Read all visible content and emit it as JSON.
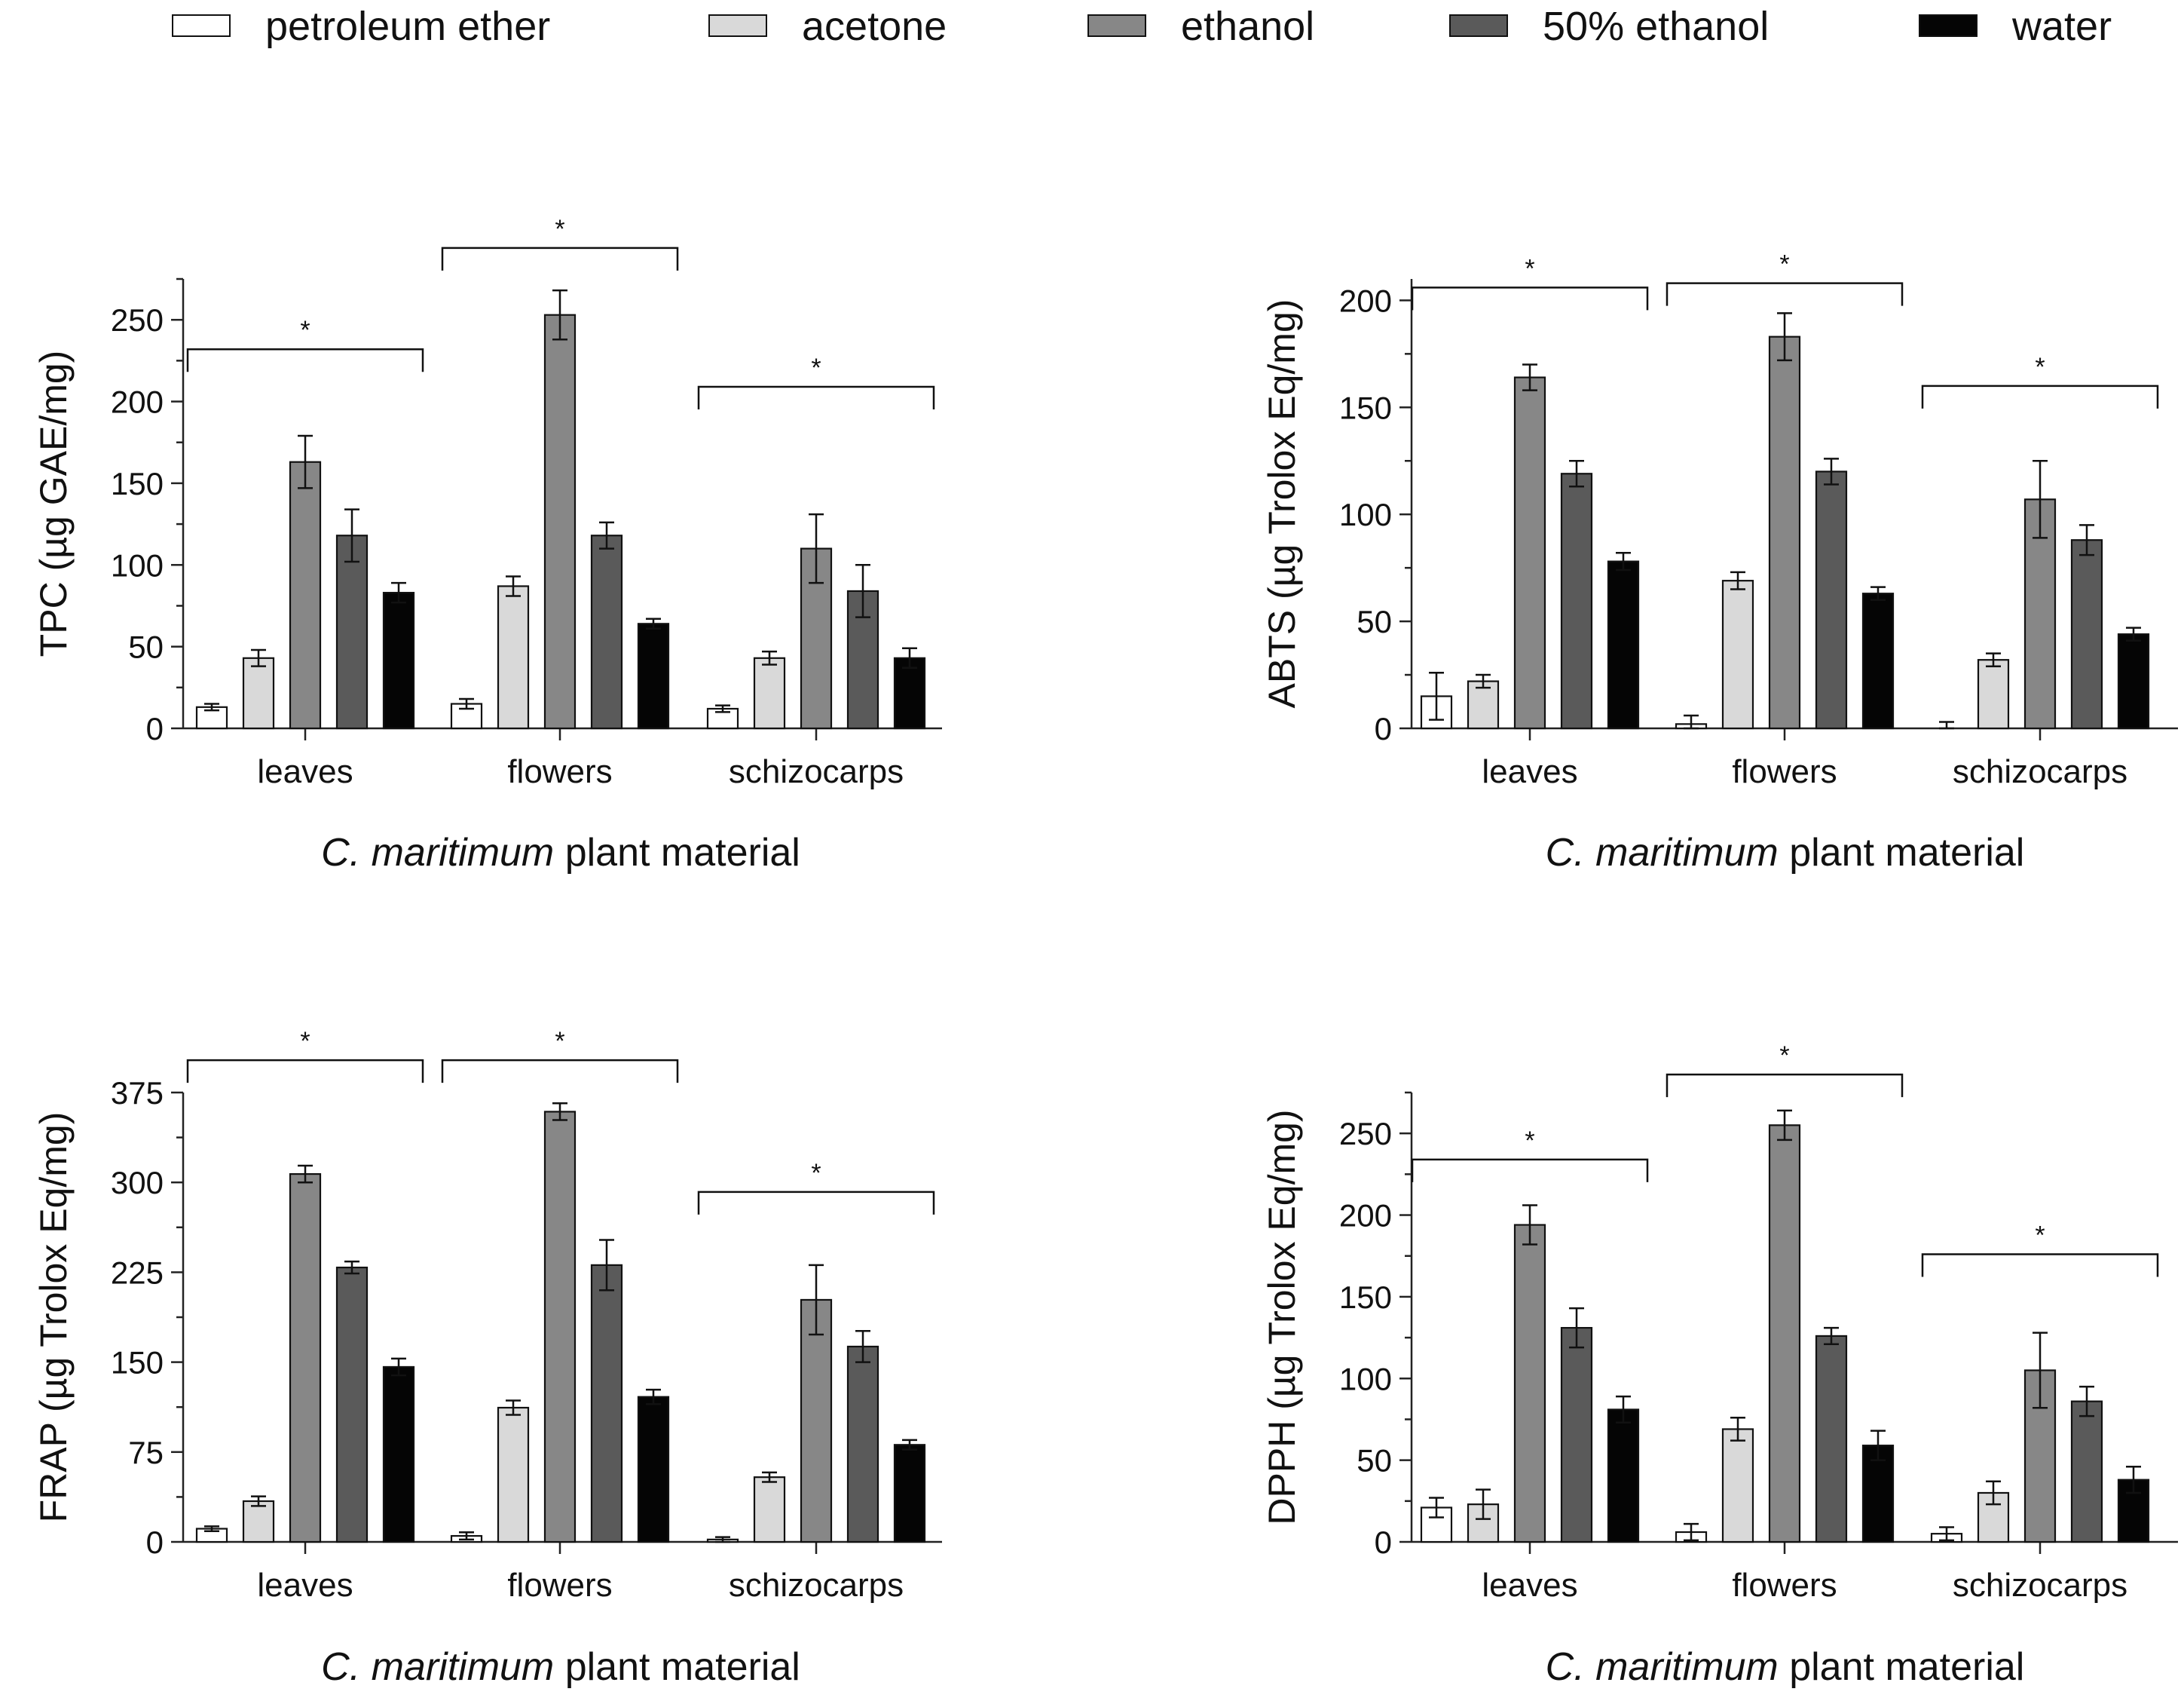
{
  "legend": {
    "items": [
      {
        "label": "petroleum ether",
        "color": "#ffffff"
      },
      {
        "label": "acetone",
        "color": "#d9d9d9"
      },
      {
        "label": "ethanol",
        "color": "#878787"
      },
      {
        "label": "50% ethanol",
        "color": "#5a5a5a"
      },
      {
        "label": "water",
        "color": "#050505"
      }
    ]
  },
  "chart_data": [
    {
      "type": "bar",
      "ylabel": "TPC (µg GAE/mg)",
      "xlabel": "C. maritimum plant material",
      "xlabel_italic": "C. maritimum",
      "xlabel_rest": " plant material",
      "categories": [
        "leaves",
        "flowers",
        "schizocarps"
      ],
      "ylim": [
        0,
        275
      ],
      "yticks": [
        0,
        50,
        100,
        150,
        200,
        250
      ],
      "series": [
        {
          "name": "petroleum ether",
          "values": [
            13,
            15,
            12
          ],
          "errors": [
            2,
            3,
            2
          ]
        },
        {
          "name": "acetone",
          "values": [
            43,
            87,
            43
          ],
          "errors": [
            5,
            6,
            4
          ]
        },
        {
          "name": "ethanol",
          "values": [
            163,
            253,
            110
          ],
          "errors": [
            16,
            15,
            21
          ]
        },
        {
          "name": "50% ethanol",
          "values": [
            118,
            118,
            84
          ],
          "errors": [
            16,
            8,
            16
          ]
        },
        {
          "name": "water",
          "values": [
            83,
            64,
            43
          ],
          "errors": [
            6,
            3,
            6
          ]
        }
      ],
      "significance": [
        {
          "label": "*",
          "category": "leaves",
          "value": 232
        },
        {
          "label": "*",
          "category": "flowers",
          "value": 294
        },
        {
          "label": "*",
          "category": "schizocarps",
          "value": 209
        }
      ]
    },
    {
      "type": "bar",
      "ylabel": "ABTS (µg Trolox Eq/mg)",
      "xlabel": "C. maritimum plant material",
      "xlabel_italic": "C. maritimum",
      "xlabel_rest": " plant material",
      "categories": [
        "leaves",
        "flowers",
        "schizocarps"
      ],
      "ylim": [
        0,
        210
      ],
      "yticks": [
        0,
        50,
        100,
        150,
        200
      ],
      "series": [
        {
          "name": "petroleum ether",
          "values": [
            15,
            2,
            0
          ],
          "errors": [
            11,
            4,
            3
          ]
        },
        {
          "name": "acetone",
          "values": [
            22,
            69,
            32
          ],
          "errors": [
            3,
            4,
            3
          ]
        },
        {
          "name": "ethanol",
          "values": [
            164,
            183,
            107
          ],
          "errors": [
            6,
            11,
            18
          ]
        },
        {
          "name": "50% ethanol",
          "values": [
            119,
            120,
            88
          ],
          "errors": [
            6,
            6,
            7
          ]
        },
        {
          "name": "water",
          "values": [
            78,
            63,
            44
          ],
          "errors": [
            4,
            3,
            3
          ]
        }
      ],
      "significance": [
        {
          "label": "*",
          "category": "leaves",
          "value": 206
        },
        {
          "label": "*",
          "category": "flowers",
          "value": 208
        },
        {
          "label": "*",
          "category": "schizocarps",
          "value": 160
        }
      ]
    },
    {
      "type": "bar",
      "ylabel": "FRAP (µg Trolox Eq/mg)",
      "xlabel": "C. maritimum plant material",
      "xlabel_italic": "C. maritimum",
      "xlabel_rest": " plant material",
      "categories": [
        "leaves",
        "flowers",
        "schizocarps"
      ],
      "ylim": [
        0,
        375
      ],
      "yticks": [
        0,
        75,
        150,
        225,
        300,
        375
      ],
      "series": [
        {
          "name": "petroleum ether",
          "values": [
            11,
            5,
            2
          ],
          "errors": [
            2,
            3,
            2
          ]
        },
        {
          "name": "acetone",
          "values": [
            34,
            112,
            54
          ],
          "errors": [
            4,
            6,
            4
          ]
        },
        {
          "name": "ethanol",
          "values": [
            307,
            359,
            202
          ],
          "errors": [
            7,
            7,
            29
          ]
        },
        {
          "name": "50% ethanol",
          "values": [
            229,
            231,
            163
          ],
          "errors": [
            5,
            21,
            13
          ]
        },
        {
          "name": "water",
          "values": [
            146,
            121,
            81
          ],
          "errors": [
            7,
            6,
            4
          ]
        }
      ],
      "significance": [
        {
          "label": "*",
          "category": "leaves",
          "value": 402
        },
        {
          "label": "*",
          "category": "flowers",
          "value": 402
        },
        {
          "label": "*",
          "category": "schizocarps",
          "value": 292
        }
      ]
    },
    {
      "type": "bar",
      "ylabel": "DPPH (µg Trolox Eq/mg)",
      "xlabel": "C. maritimum plant material",
      "xlabel_italic": "C. maritimum",
      "xlabel_rest": " plant material",
      "categories": [
        "leaves",
        "flowers",
        "schizocarps"
      ],
      "ylim": [
        0,
        275
      ],
      "yticks": [
        0,
        50,
        100,
        150,
        200,
        250
      ],
      "series": [
        {
          "name": "petroleum ether",
          "values": [
            21,
            6,
            5
          ],
          "errors": [
            6,
            5,
            4
          ]
        },
        {
          "name": "acetone",
          "values": [
            23,
            69,
            30
          ],
          "errors": [
            9,
            7,
            7
          ]
        },
        {
          "name": "ethanol",
          "values": [
            194,
            255,
            105
          ],
          "errors": [
            12,
            9,
            23
          ]
        },
        {
          "name": "50% ethanol",
          "values": [
            131,
            126,
            86
          ],
          "errors": [
            12,
            5,
            9
          ]
        },
        {
          "name": "water",
          "values": [
            81,
            59,
            38
          ],
          "errors": [
            8,
            9,
            8
          ]
        }
      ],
      "significance": [
        {
          "label": "*",
          "category": "leaves",
          "value": 234
        },
        {
          "label": "*",
          "category": "flowers",
          "value": 286
        },
        {
          "label": "*",
          "category": "schizocarps",
          "value": 176
        }
      ]
    }
  ]
}
